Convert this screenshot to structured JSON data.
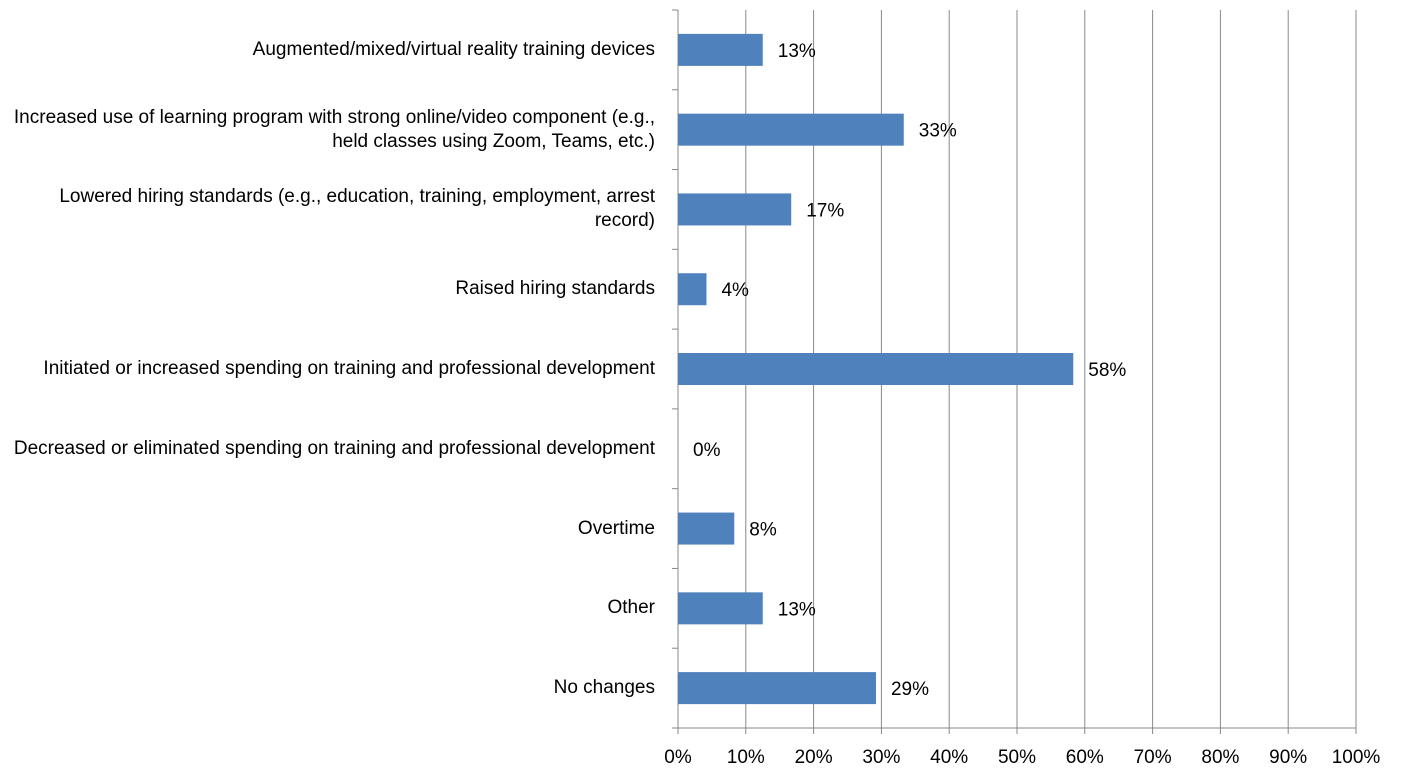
{
  "chart_data": {
    "type": "bar",
    "orientation": "horizontal",
    "categories": [
      "Augmented/mixed/virtual reality training devices",
      "Increased use of learning program with strong online/video component (e.g., held classes using Zoom, Teams, etc.)",
      "Lowered hiring standards (e.g., education, training, employment, arrest record)",
      "Raised hiring standards",
      "Initiated or increased spending on training and professional development",
      "Decreased or eliminated spending on training and professional development",
      "Overtime",
      "Other",
      "No changes"
    ],
    "values": [
      12.5,
      33.3,
      16.7,
      4.2,
      58.3,
      0,
      8.3,
      12.5,
      29.2
    ],
    "value_labels": [
      "13%",
      "33%",
      "17%",
      "4%",
      "58%",
      "0%",
      "8%",
      "13%",
      "29%"
    ],
    "color": "#4f81bd",
    "xlim": [
      0,
      100
    ],
    "xticks": [
      {
        "value": 0,
        "label": "0%"
      },
      {
        "value": 10,
        "label": "10%"
      },
      {
        "value": 20,
        "label": "20%"
      },
      {
        "value": 30,
        "label": "30%"
      },
      {
        "value": 40,
        "label": "40%"
      },
      {
        "value": 50,
        "label": "50%"
      },
      {
        "value": 60,
        "label": "60%"
      },
      {
        "value": 70,
        "label": "70%"
      },
      {
        "value": 80,
        "label": "80%"
      },
      {
        "value": 90,
        "label": "90%"
      },
      {
        "value": 100,
        "label": "100%"
      }
    ],
    "grid": true
  }
}
